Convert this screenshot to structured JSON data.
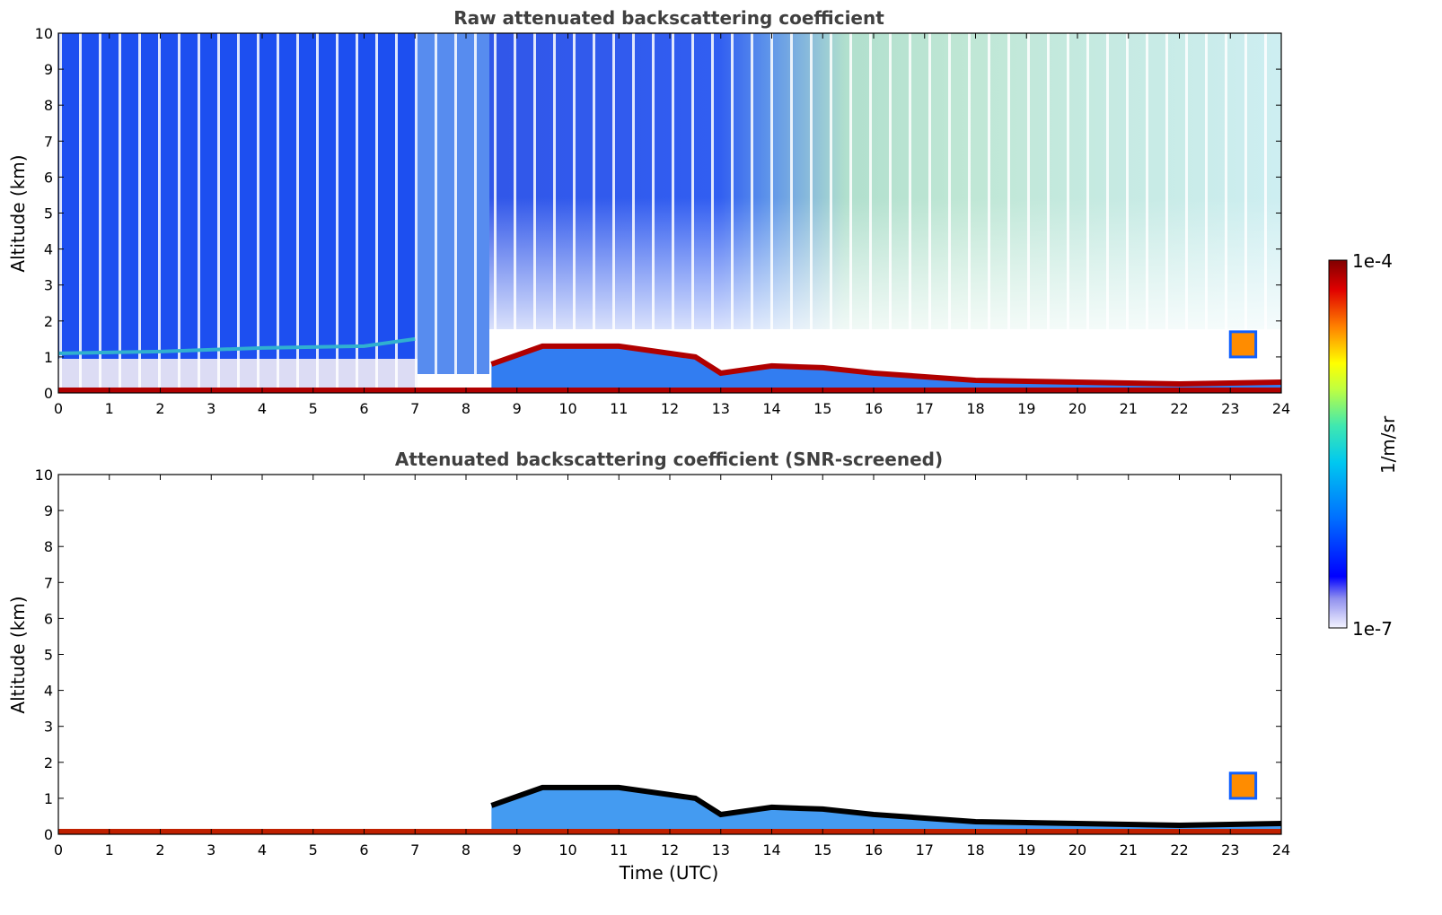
{
  "chart_data": [
    {
      "type": "heatmap",
      "title": "Raw attenuated backscattering coefficient",
      "xlabel": "",
      "ylabel": "Altitude (km)",
      "xlim": [
        0,
        24
      ],
      "ylim": [
        0,
        10
      ],
      "xticks": [
        0,
        1,
        2,
        3,
        4,
        5,
        6,
        7,
        8,
        9,
        10,
        11,
        12,
        13,
        14,
        15,
        16,
        17,
        18,
        19,
        20,
        21,
        22,
        23,
        24
      ],
      "yticks": [
        0,
        1,
        2,
        3,
        4,
        5,
        6,
        7,
        8,
        9,
        10
      ],
      "layers": [
        {
          "label": "surface layer",
          "t_start": 0,
          "t_end": 24,
          "z_bottom": 0,
          "z_top": 0.15
        },
        {
          "label": "aerosol layer top",
          "points": [
            [
              0,
              1.1
            ],
            [
              2,
              1.15
            ],
            [
              4,
              1.25
            ],
            [
              6,
              1.3
            ],
            [
              7,
              1.5
            ]
          ]
        },
        {
          "label": "boundary layer",
          "points": [
            [
              8.5,
              0.8
            ],
            [
              9.5,
              1.3
            ],
            [
              11,
              1.3
            ],
            [
              12.5,
              1.0
            ],
            [
              13,
              0.55
            ],
            [
              14,
              0.75
            ],
            [
              15,
              0.7
            ],
            [
              16,
              0.55
            ],
            [
              17,
              0.45
            ],
            [
              18,
              0.35
            ],
            [
              20,
              0.3
            ],
            [
              22,
              0.25
            ],
            [
              24,
              0.3
            ]
          ]
        },
        {
          "label": "cloud",
          "t_start": 23.0,
          "t_end": 23.5,
          "z_bottom": 1.0,
          "z_top": 1.7
        }
      ]
    },
    {
      "type": "heatmap",
      "title": "Attenuated backscattering coefficient (SNR-screened)",
      "xlabel": "Time (UTC)",
      "ylabel": "Altitude (km)",
      "xlim": [
        0,
        24
      ],
      "ylim": [
        0,
        10
      ],
      "xticks": [
        0,
        1,
        2,
        3,
        4,
        5,
        6,
        7,
        8,
        9,
        10,
        11,
        12,
        13,
        14,
        15,
        16,
        17,
        18,
        19,
        20,
        21,
        22,
        23,
        24
      ],
      "yticks": [
        0,
        1,
        2,
        3,
        4,
        5,
        6,
        7,
        8,
        9,
        10
      ],
      "layers": [
        {
          "label": "surface layer",
          "t_start": 0,
          "t_end": 24,
          "z_bottom": 0,
          "z_top": 0.15
        },
        {
          "label": "boundary layer",
          "points": [
            [
              8.5,
              0.8
            ],
            [
              9.5,
              1.3
            ],
            [
              11,
              1.3
            ],
            [
              12.5,
              1.0
            ],
            [
              13,
              0.55
            ],
            [
              14,
              0.75
            ],
            [
              15,
              0.7
            ],
            [
              16,
              0.55
            ],
            [
              17,
              0.45
            ],
            [
              18,
              0.35
            ],
            [
              20,
              0.3
            ],
            [
              22,
              0.25
            ],
            [
              24,
              0.3
            ]
          ]
        },
        {
          "label": "cloud",
          "t_start": 23.0,
          "t_end": 23.5,
          "z_bottom": 1.0,
          "z_top": 1.7
        }
      ]
    }
  ],
  "colorbar": {
    "label": "1/m/sr",
    "min_label": "1e-7",
    "max_label": "1e-4",
    "scale": "log",
    "colormap": [
      "#ffffff",
      "#d8d8f4",
      "#7070e8",
      "#0000ff",
      "#0060ff",
      "#00b0ff",
      "#40e0d0",
      "#a0ff60",
      "#ffff00",
      "#ff9000",
      "#ff2000",
      "#800000"
    ]
  }
}
